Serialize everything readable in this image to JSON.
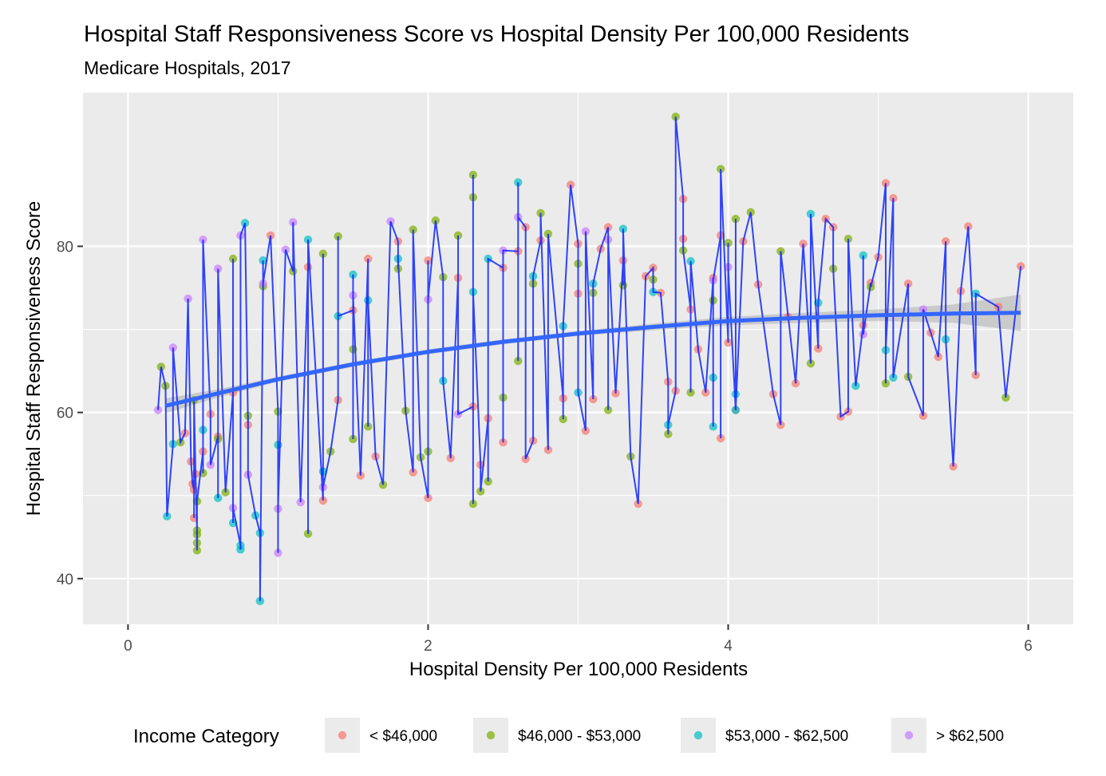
{
  "chart_data": {
    "type": "scatter",
    "title": "Hospital Staff Responsiveness Score vs Hospital Density Per 100,000 Residents",
    "subtitle": "Medicare Hospitals, 2017",
    "xlabel": "Hospital Density Per 100,000 Residents",
    "ylabel": "Hospital Staff Responsiveness Score",
    "xlim": [
      -0.3,
      6.3
    ],
    "ylim": [
      34.5,
      98.5
    ],
    "x_ticks": [
      0,
      2,
      4,
      6
    ],
    "y_ticks": [
      40,
      60,
      80
    ],
    "grid": true,
    "legend": {
      "title": "Income Category",
      "position": "bottom",
      "entries": [
        {
          "label": "< $46,000",
          "color": "#F8766D"
        },
        {
          "label": "$46,000 - $53,000",
          "color": "#7CAE00"
        },
        {
          "label": "$53,000 - $62,500",
          "color": "#00BFC4"
        },
        {
          "label": "> $62,500",
          "color": "#C77CFF"
        }
      ]
    },
    "series": [
      {
        "name": "< $46,000",
        "color": "#F8766D",
        "points": [
          [
            0.38,
            57.5
          ],
          [
            0.42,
            54.1
          ],
          [
            0.43,
            51.4
          ],
          [
            0.44,
            50.7
          ],
          [
            0.44,
            47.3
          ],
          [
            0.45,
            52.6
          ],
          [
            0.5,
            55.3
          ],
          [
            0.55,
            59.8
          ],
          [
            0.6,
            57.1
          ],
          [
            0.7,
            62.4
          ],
          [
            0.8,
            58.5
          ],
          [
            0.95,
            81.3
          ],
          [
            1.2,
            77.5
          ],
          [
            1.3,
            49.4
          ],
          [
            1.4,
            61.5
          ],
          [
            1.5,
            72.3
          ],
          [
            1.55,
            52.4
          ],
          [
            1.6,
            78.5
          ],
          [
            1.65,
            54.7
          ],
          [
            1.8,
            80.6
          ],
          [
            1.9,
            52.8
          ],
          [
            2.0,
            49.7
          ],
          [
            2.0,
            78.3
          ],
          [
            2.15,
            54.5
          ],
          [
            2.2,
            76.2
          ],
          [
            2.3,
            60.7
          ],
          [
            2.35,
            53.7
          ],
          [
            2.4,
            59.3
          ],
          [
            2.5,
            77.4
          ],
          [
            2.5,
            56.4
          ],
          [
            2.6,
            79.4
          ],
          [
            2.65,
            82.3
          ],
          [
            2.65,
            54.4
          ],
          [
            2.7,
            56.6
          ],
          [
            2.75,
            80.7
          ],
          [
            2.8,
            55.5
          ],
          [
            2.9,
            61.7
          ],
          [
            2.95,
            87.4
          ],
          [
            3.0,
            80.3
          ],
          [
            3.0,
            74.3
          ],
          [
            3.05,
            57.8
          ],
          [
            3.1,
            61.6
          ],
          [
            3.15,
            79.7
          ],
          [
            3.2,
            82.3
          ],
          [
            3.25,
            62.3
          ],
          [
            3.3,
            78.3
          ],
          [
            3.4,
            49.0
          ],
          [
            3.45,
            76.4
          ],
          [
            3.5,
            77.4
          ],
          [
            3.55,
            74.4
          ],
          [
            3.6,
            63.7
          ],
          [
            3.65,
            62.6
          ],
          [
            3.7,
            85.7
          ],
          [
            3.7,
            80.9
          ],
          [
            3.75,
            72.4
          ],
          [
            3.8,
            67.6
          ],
          [
            3.85,
            62.4
          ],
          [
            3.9,
            76.2
          ],
          [
            3.95,
            81.3
          ],
          [
            3.95,
            56.9
          ],
          [
            4.0,
            68.4
          ],
          [
            4.05,
            60.3
          ],
          [
            4.1,
            80.6
          ],
          [
            4.2,
            75.4
          ],
          [
            4.3,
            62.2
          ],
          [
            4.35,
            58.5
          ],
          [
            4.4,
            71.5
          ],
          [
            4.45,
            63.5
          ],
          [
            4.5,
            80.3
          ],
          [
            4.6,
            67.7
          ],
          [
            4.65,
            83.3
          ],
          [
            4.7,
            82.3
          ],
          [
            4.75,
            59.5
          ],
          [
            4.8,
            60.1
          ],
          [
            4.9,
            70.5
          ],
          [
            4.95,
            75.6
          ],
          [
            5.0,
            78.7
          ],
          [
            5.05,
            87.6
          ],
          [
            5.1,
            85.8
          ],
          [
            5.2,
            75.5
          ],
          [
            5.3,
            59.6
          ],
          [
            5.35,
            69.6
          ],
          [
            5.4,
            66.7
          ],
          [
            5.45,
            80.6
          ],
          [
            5.5,
            53.5
          ],
          [
            5.55,
            74.6
          ],
          [
            5.6,
            82.4
          ],
          [
            5.65,
            64.5
          ],
          [
            5.8,
            72.7
          ],
          [
            5.95,
            77.6
          ]
        ]
      },
      {
        "name": "$46,000 - $53,000",
        "color": "#7CAE00",
        "points": [
          [
            0.22,
            65.5
          ],
          [
            0.25,
            63.2
          ],
          [
            0.35,
            56.4
          ],
          [
            0.44,
            61.5
          ],
          [
            0.46,
            45.8
          ],
          [
            0.46,
            45.3
          ],
          [
            0.46,
            44.3
          ],
          [
            0.46,
            43.4
          ],
          [
            0.46,
            49.3
          ],
          [
            0.5,
            52.7
          ],
          [
            0.6,
            56.8
          ],
          [
            0.65,
            50.4
          ],
          [
            0.7,
            78.5
          ],
          [
            0.8,
            59.6
          ],
          [
            0.9,
            75.2
          ],
          [
            1.0,
            60.1
          ],
          [
            1.1,
            77.0
          ],
          [
            1.2,
            45.4
          ],
          [
            1.3,
            79.1
          ],
          [
            1.35,
            55.3
          ],
          [
            1.4,
            81.2
          ],
          [
            1.5,
            56.8
          ],
          [
            1.5,
            67.6
          ],
          [
            1.6,
            58.3
          ],
          [
            1.7,
            51.3
          ],
          [
            1.8,
            77.3
          ],
          [
            1.85,
            60.2
          ],
          [
            1.9,
            82.0
          ],
          [
            1.95,
            54.6
          ],
          [
            2.0,
            55.3
          ],
          [
            2.05,
            83.1
          ],
          [
            2.1,
            76.3
          ],
          [
            2.2,
            81.3
          ],
          [
            2.3,
            88.6
          ],
          [
            2.3,
            85.9
          ],
          [
            2.3,
            49.0
          ],
          [
            2.35,
            50.5
          ],
          [
            2.4,
            51.7
          ],
          [
            2.5,
            61.8
          ],
          [
            2.6,
            66.2
          ],
          [
            2.7,
            75.5
          ],
          [
            2.75,
            84.0
          ],
          [
            2.8,
            81.5
          ],
          [
            2.9,
            59.2
          ],
          [
            3.0,
            77.9
          ],
          [
            3.1,
            74.4
          ],
          [
            3.2,
            60.3
          ],
          [
            3.3,
            75.3
          ],
          [
            3.35,
            54.7
          ],
          [
            3.5,
            76.0
          ],
          [
            3.6,
            57.4
          ],
          [
            3.65,
            95.6
          ],
          [
            3.7,
            79.5
          ],
          [
            3.75,
            62.4
          ],
          [
            3.9,
            73.5
          ],
          [
            3.95,
            89.3
          ],
          [
            4.0,
            80.4
          ],
          [
            4.05,
            83.3
          ],
          [
            4.15,
            84.1
          ],
          [
            4.35,
            79.4
          ],
          [
            4.55,
            65.9
          ],
          [
            4.7,
            77.3
          ],
          [
            4.8,
            80.9
          ],
          [
            4.95,
            75.1
          ],
          [
            5.05,
            63.5
          ],
          [
            5.2,
            64.3
          ],
          [
            5.85,
            61.8
          ]
        ]
      },
      {
        "name": "$53,000 - $62,500",
        "color": "#00BFC4",
        "points": [
          [
            0.26,
            47.5
          ],
          [
            0.3,
            56.2
          ],
          [
            0.5,
            57.9
          ],
          [
            0.6,
            49.7
          ],
          [
            0.7,
            46.7
          ],
          [
            0.75,
            44.0
          ],
          [
            0.75,
            43.5
          ],
          [
            0.78,
            82.8
          ],
          [
            0.85,
            47.6
          ],
          [
            0.88,
            45.5
          ],
          [
            0.88,
            37.3
          ],
          [
            0.9,
            78.3
          ],
          [
            1.0,
            56.1
          ],
          [
            1.2,
            80.8
          ],
          [
            1.3,
            52.9
          ],
          [
            1.4,
            71.6
          ],
          [
            1.5,
            76.6
          ],
          [
            1.6,
            73.5
          ],
          [
            1.8,
            78.5
          ],
          [
            2.1,
            63.8
          ],
          [
            2.3,
            74.5
          ],
          [
            2.4,
            78.5
          ],
          [
            2.6,
            87.7
          ],
          [
            2.7,
            76.4
          ],
          [
            2.9,
            70.4
          ],
          [
            3.0,
            62.4
          ],
          [
            3.1,
            75.5
          ],
          [
            3.3,
            82.1
          ],
          [
            3.5,
            74.5
          ],
          [
            3.6,
            58.5
          ],
          [
            3.75,
            78.2
          ],
          [
            3.9,
            64.2
          ],
          [
            3.9,
            58.3
          ],
          [
            4.05,
            62.2
          ],
          [
            4.05,
            60.3
          ],
          [
            4.55,
            83.9
          ],
          [
            4.6,
            73.2
          ],
          [
            4.85,
            63.2
          ],
          [
            4.9,
            78.9
          ],
          [
            5.05,
            67.5
          ],
          [
            5.1,
            64.2
          ],
          [
            5.45,
            68.8
          ],
          [
            5.65,
            74.3
          ]
        ]
      },
      {
        "name": "> $62,500",
        "color": "#C77CFF",
        "points": [
          [
            0.2,
            60.3
          ],
          [
            0.3,
            67.8
          ],
          [
            0.4,
            73.7
          ],
          [
            0.5,
            80.8
          ],
          [
            0.55,
            53.7
          ],
          [
            0.6,
            77.3
          ],
          [
            0.7,
            48.5
          ],
          [
            0.75,
            81.3
          ],
          [
            0.8,
            52.5
          ],
          [
            0.9,
            75.5
          ],
          [
            1.0,
            43.1
          ],
          [
            1.0,
            48.4
          ],
          [
            1.05,
            79.6
          ],
          [
            1.1,
            82.9
          ],
          [
            1.15,
            49.2
          ],
          [
            1.3,
            51.0
          ],
          [
            1.5,
            74.1
          ],
          [
            1.75,
            83.0
          ],
          [
            2.0,
            73.6
          ],
          [
            2.2,
            59.8
          ],
          [
            2.5,
            79.5
          ],
          [
            2.6,
            83.5
          ],
          [
            3.05,
            81.8
          ],
          [
            3.2,
            80.8
          ],
          [
            3.9,
            75.9
          ],
          [
            4.0,
            77.5
          ],
          [
            4.9,
            69.4
          ],
          [
            5.3,
            72.4
          ]
        ]
      }
    ],
    "trend_line": {
      "name": "loess",
      "color": "#3366FF",
      "points": [
        [
          0.25,
          60.8
        ],
        [
          0.6,
          62.3
        ],
        [
          1.0,
          64.0
        ],
        [
          1.5,
          65.8
        ],
        [
          2.0,
          67.3
        ],
        [
          2.5,
          68.5
        ],
        [
          3.0,
          69.5
        ],
        [
          3.5,
          70.3
        ],
        [
          4.0,
          71.0
        ],
        [
          4.5,
          71.4
        ],
        [
          5.0,
          71.7
        ],
        [
          5.5,
          71.9
        ],
        [
          5.95,
          72.0
        ]
      ],
      "band": {
        "upper": [
          [
            0.25,
            61.7
          ],
          [
            0.6,
            62.8
          ],
          [
            1.0,
            64.3
          ],
          [
            1.5,
            66.1
          ],
          [
            2.0,
            67.6
          ],
          [
            2.5,
            68.8
          ],
          [
            3.0,
            69.8
          ],
          [
            3.5,
            70.7
          ],
          [
            4.0,
            71.5
          ],
          [
            4.5,
            72.0
          ],
          [
            5.0,
            72.4
          ],
          [
            5.5,
            73.0
          ],
          [
            5.95,
            74.2
          ]
        ],
        "lower": [
          [
            0.25,
            59.9
          ],
          [
            0.6,
            61.8
          ],
          [
            1.0,
            63.7
          ],
          [
            1.5,
            65.5
          ],
          [
            2.0,
            67.0
          ],
          [
            2.5,
            68.2
          ],
          [
            3.0,
            69.2
          ],
          [
            3.5,
            69.9
          ],
          [
            4.0,
            70.5
          ],
          [
            4.5,
            70.8
          ],
          [
            5.0,
            71.0
          ],
          [
            5.5,
            70.8
          ],
          [
            5.95,
            69.8
          ]
        ]
      }
    },
    "mean_line": {
      "name": "mean by density",
      "color": "#0D26FF"
    }
  }
}
